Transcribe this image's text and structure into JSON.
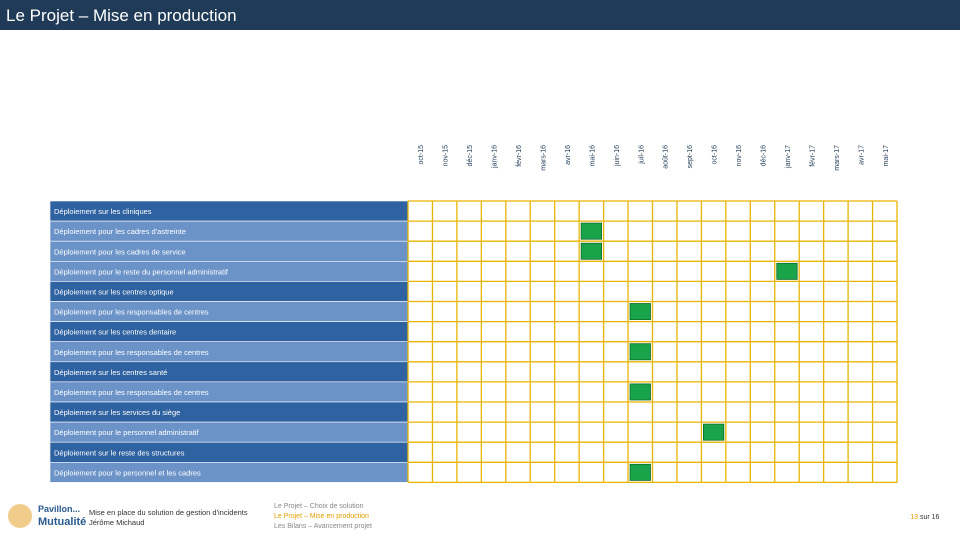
{
  "header": {
    "title": "Le Projet – Mise en production"
  },
  "table": {
    "months": [
      "oct-15",
      "nov-15",
      "déc-15",
      "janv-16",
      "févr-16",
      "mars-16",
      "avr-16",
      "mai-16",
      "juin-16",
      "juil-16",
      "août-16",
      "sept-16",
      "oct-16",
      "nov-16",
      "déc-16",
      "janv-17",
      "févr-17",
      "mars-17",
      "avr-17",
      "mai-17"
    ],
    "rows": [
      {
        "label": "Déploiement sur les cliniques",
        "section": true,
        "milestone": null
      },
      {
        "label": "Déploiement pour les cadres d'astreinte",
        "section": false,
        "milestone": 7
      },
      {
        "label": "Déploiement pour les cadres de service",
        "section": false,
        "milestone": 7
      },
      {
        "label": "Déploiement pour le reste du personnel administratif",
        "section": false,
        "milestone": 15
      },
      {
        "label": "Déploiement sur les centres optique",
        "section": true,
        "milestone": null
      },
      {
        "label": "Déploiement pour les responsables de centres",
        "section": false,
        "milestone": 9
      },
      {
        "label": "Déploiement sur les centres dentaire",
        "section": true,
        "milestone": null
      },
      {
        "label": "Déploiement pour les responsables de centres",
        "section": false,
        "milestone": 9
      },
      {
        "label": "Déploiement sur les centres santé",
        "section": true,
        "milestone": null
      },
      {
        "label": "Déploiement pour les responsables de centres",
        "section": false,
        "milestone": 9
      },
      {
        "label": "Déploiement sur les services du siège",
        "section": true,
        "milestone": null
      },
      {
        "label": "Déploiement pour le personnel administratif",
        "section": false,
        "milestone": 12
      },
      {
        "label": "Déploiement sur le reste des structures",
        "section": true,
        "milestone": null
      },
      {
        "label": "Déploiement pour le personnel et les cadres",
        "section": false,
        "milestone": 9
      }
    ]
  },
  "footer": {
    "logo_top": "Pavillon...",
    "logo_main": "Mutualité",
    "subject": "Mise en place du solution de gestion d'incidents",
    "author": "Jérôme Michaud",
    "nav": [
      "Le Projet – Choix de solution",
      "Le Projet – Mise en production",
      "Les Bilans – Avancement projet"
    ],
    "page_current": "13",
    "page_label": "sur 16"
  }
}
